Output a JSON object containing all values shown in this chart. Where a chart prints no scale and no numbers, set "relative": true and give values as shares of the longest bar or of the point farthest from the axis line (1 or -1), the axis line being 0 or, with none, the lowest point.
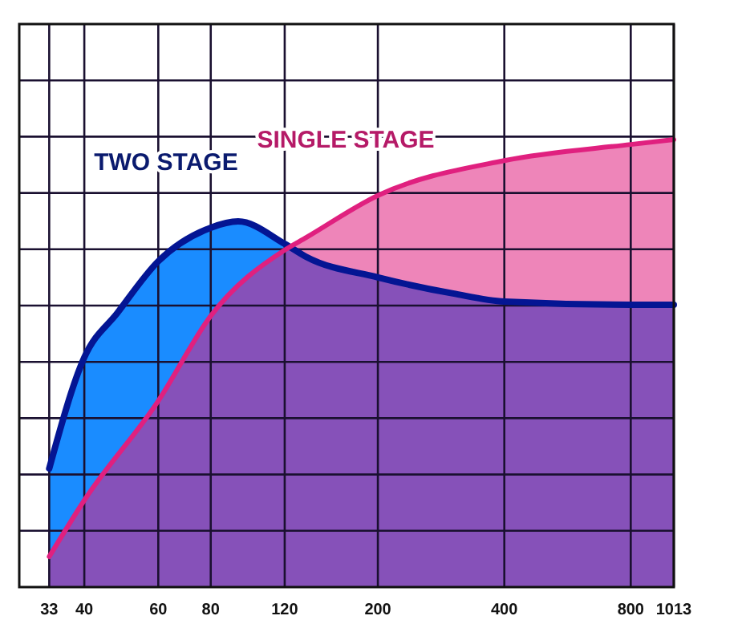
{
  "chart_data": {
    "type": "area",
    "relative": true,
    "log": "x",
    "grid": true,
    "xlim": [
      28,
      1013
    ],
    "xticks": [
      33,
      40,
      60,
      80,
      120,
      200,
      400,
      800,
      1013
    ],
    "series": [
      {
        "name": "TWO STAGE",
        "color": "#1a8cff",
        "x": [
          33,
          40,
          48,
          60,
          80,
          93,
          120,
          135,
          200,
          302,
          400,
          800,
          1013
        ],
        "values": [
          0.265,
          0.513,
          0.613,
          0.728,
          0.803,
          0.817,
          0.767,
          0.738,
          0.692,
          0.656,
          0.638,
          0.631,
          0.631
        ]
      },
      {
        "name": "SINGLE STAGE",
        "color": "#e0207f",
        "x": [
          33,
          40,
          60,
          80,
          120,
          135,
          200,
          400,
          800,
          1013
        ],
        "values": [
          0.068,
          0.194,
          0.416,
          0.606,
          0.753,
          0.781,
          0.875,
          0.953,
          0.989,
          1
        ]
      }
    ]
  }
}
